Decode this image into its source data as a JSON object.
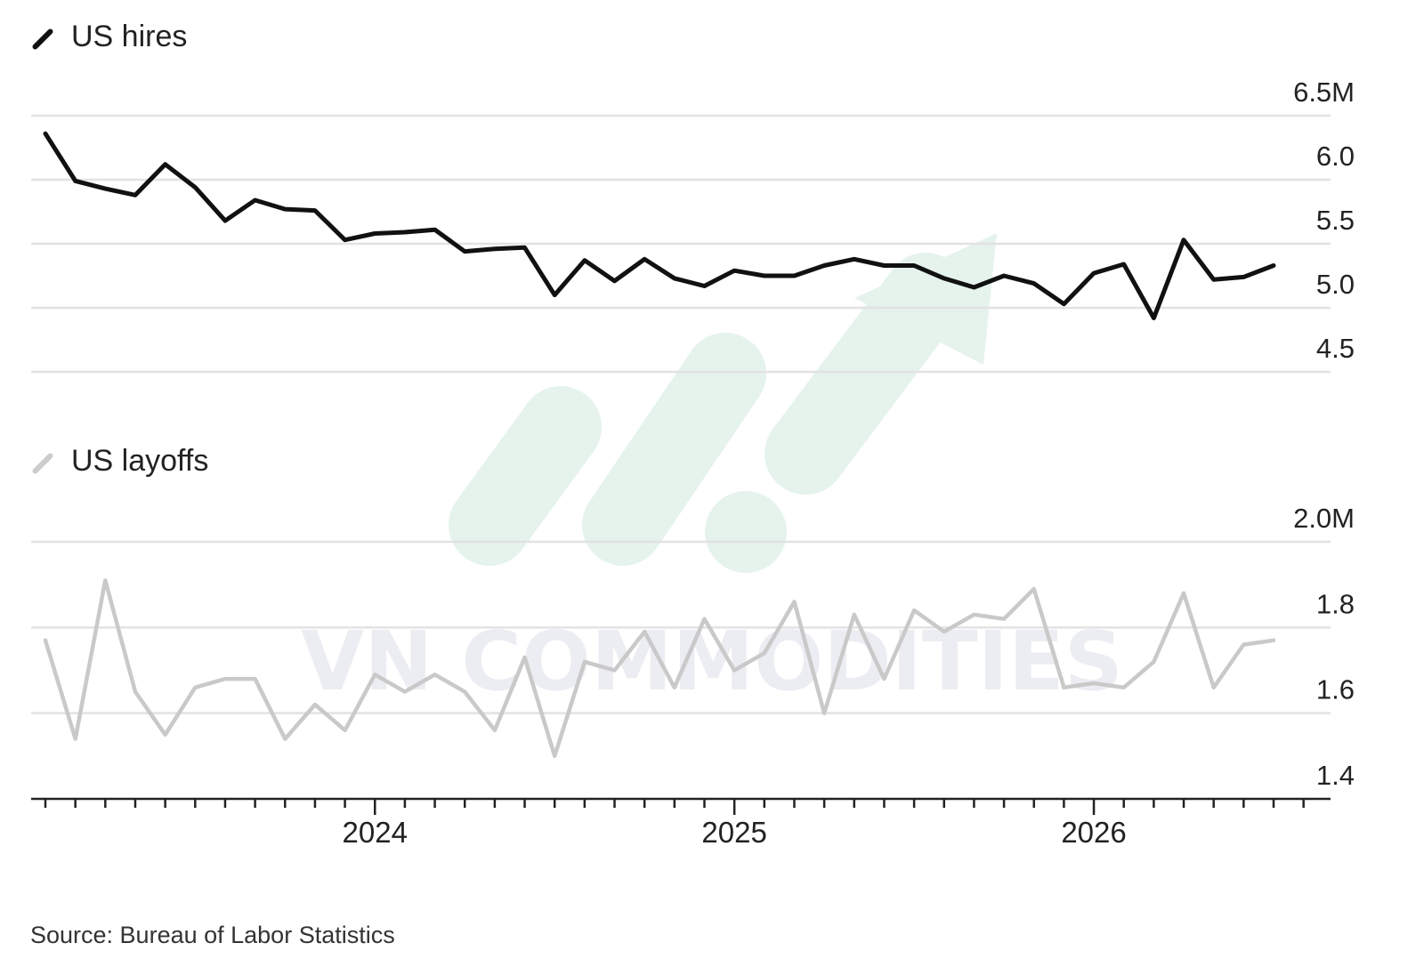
{
  "source": "Source: Bureau of Labor Statistics",
  "colors": {
    "hires_line": "#111111",
    "layoffs_line": "#c9c9c9",
    "grid": "#e2e2e2",
    "axis": "#222222",
    "watermark": "#e3f2ea"
  },
  "watermark": {
    "text": "VN COMMODITIES",
    "icon": "rising-arrow-logo"
  },
  "chart_data": [
    {
      "type": "line",
      "title": "US hires",
      "y_unit": "M",
      "ylim": [
        4.5,
        6.5
      ],
      "yticks": [
        6.5,
        6.0,
        5.5,
        5.0,
        4.5
      ],
      "ytick_labels": [
        "6.5M",
        "6.0",
        "5.5",
        "5.0",
        "4.5"
      ],
      "grid": true,
      "series": [
        {
          "values": [
            6.36,
            5.99,
            5.93,
            5.88,
            6.12,
            5.94,
            5.68,
            5.84,
            5.77,
            5.76,
            5.53,
            5.58,
            5.59,
            5.61,
            5.44,
            5.46,
            5.47,
            5.1,
            5.37,
            5.21,
            5.38,
            5.23,
            5.17,
            5.29,
            5.25,
            5.25,
            5.33,
            5.38,
            5.33,
            5.33,
            5.23,
            5.16,
            5.25,
            5.19,
            5.03,
            5.27,
            5.34,
            4.92,
            5.53,
            5.22,
            5.24,
            5.33
          ]
        }
      ]
    },
    {
      "type": "line",
      "title": "US layoffs",
      "y_unit": "M",
      "ylim": [
        1.4,
        2.0
      ],
      "yticks": [
        2.0,
        1.8,
        1.6,
        1.4
      ],
      "ytick_labels": [
        "2.0M",
        "1.8",
        "1.6",
        "1.4"
      ],
      "grid": true,
      "series": [
        {
          "values": [
            1.77,
            1.54,
            1.91,
            1.65,
            1.55,
            1.66,
            1.68,
            1.68,
            1.54,
            1.62,
            1.56,
            1.69,
            1.65,
            1.69,
            1.65,
            1.56,
            1.73,
            1.5,
            1.72,
            1.7,
            1.79,
            1.66,
            1.82,
            1.7,
            1.74,
            1.86,
            1.6,
            1.83,
            1.68,
            1.84,
            1.79,
            1.83,
            1.82,
            1.89,
            1.66,
            1.67,
            1.66,
            1.72,
            1.88,
            1.66,
            1.76,
            1.77
          ]
        }
      ]
    }
  ],
  "x_axis": {
    "labels": [
      "2024",
      "2025",
      "2026"
    ],
    "label_indices": [
      11,
      23,
      35
    ],
    "n_points": 42,
    "n_ticks": 43
  }
}
